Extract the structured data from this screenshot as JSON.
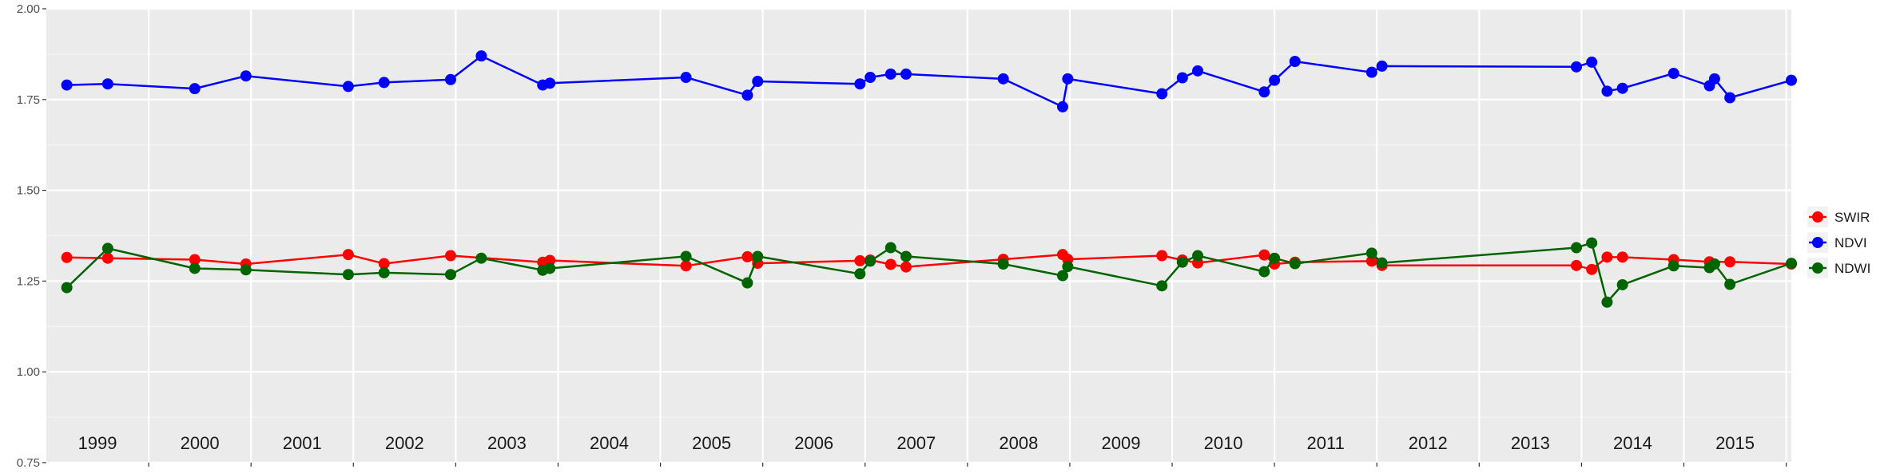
{
  "chart_data": {
    "type": "line",
    "title": "",
    "xlabel": "",
    "ylabel": "",
    "ylim": [
      0.75,
      2.0
    ],
    "y_ticks": [
      "0.75",
      "1.00",
      "1.25",
      "1.50",
      "1.75",
      "2.00"
    ],
    "y_tick_values": [
      0.75,
      1.0,
      1.25,
      1.5,
      1.75,
      2.0
    ],
    "x_range": [
      1999.0,
      2016.05
    ],
    "year_labels": [
      "1999",
      "2000",
      "2001",
      "2002",
      "2003",
      "2004",
      "2005",
      "2006",
      "2007",
      "2008",
      "2009",
      "2010",
      "2011",
      "2012",
      "2013",
      "2014",
      "2015"
    ],
    "year_label_positions": [
      1999.5,
      2000.5,
      2001.5,
      2002.5,
      2003.5,
      2004.5,
      2005.5,
      2006.5,
      2007.5,
      2008.5,
      2009.5,
      2010.5,
      2011.5,
      2012.5,
      2013.5,
      2014.5,
      2015.5
    ],
    "grid": true,
    "legend_position": "right",
    "series": [
      {
        "name": "SWIR",
        "color": "#ff0000",
        "x": [
          1999.2,
          1999.6,
          2000.45,
          2000.95,
          2001.95,
          2002.3,
          2002.95,
          2003.85,
          2003.92,
          2005.25,
          2005.85,
          2005.95,
          2006.95,
          2007.05,
          2007.25,
          2007.4,
          2008.35,
          2008.93,
          2008.98,
          2009.9,
          2010.1,
          2010.25,
          2010.9,
          2011.0,
          2011.2,
          2011.95,
          2012.05,
          2013.95,
          2014.1,
          2014.25,
          2014.4,
          2014.9,
          2015.25,
          2015.45,
          2016.05
        ],
        "y": [
          1.315,
          1.313,
          1.309,
          1.297,
          1.323,
          1.298,
          1.32,
          1.302,
          1.307,
          1.292,
          1.317,
          1.299,
          1.306,
          1.308,
          1.296,
          1.289,
          1.31,
          1.323,
          1.31,
          1.32,
          1.308,
          1.3,
          1.322,
          1.297,
          1.302,
          1.305,
          1.293,
          1.293,
          1.282,
          1.316,
          1.316,
          1.309,
          1.303,
          1.303,
          1.297
        ]
      },
      {
        "name": "NDVI",
        "color": "#0000ff",
        "x": [
          1999.2,
          1999.6,
          2000.45,
          2000.95,
          2001.95,
          2002.3,
          2002.95,
          2003.25,
          2003.85,
          2003.92,
          2005.25,
          2005.85,
          2005.95,
          2006.95,
          2007.05,
          2007.25,
          2007.4,
          2008.35,
          2008.93,
          2008.98,
          2009.9,
          2010.1,
          2010.25,
          2010.9,
          2011.0,
          2011.2,
          2011.95,
          2012.05,
          2013.95,
          2014.1,
          2014.25,
          2014.4,
          2014.9,
          2015.25,
          2015.3,
          2015.45,
          2016.05
        ],
        "y": [
          1.79,
          1.793,
          1.78,
          1.815,
          1.786,
          1.797,
          1.805,
          1.87,
          1.79,
          1.795,
          1.811,
          1.762,
          1.8,
          1.793,
          1.811,
          1.82,
          1.82,
          1.807,
          1.73,
          1.807,
          1.766,
          1.81,
          1.829,
          1.771,
          1.803,
          1.855,
          1.825,
          1.842,
          1.84,
          1.853,
          1.773,
          1.781,
          1.822,
          1.788,
          1.807,
          1.755,
          1.803
        ]
      },
      {
        "name": "NDWI",
        "color": "#006400",
        "x": [
          1999.2,
          1999.6,
          2000.45,
          2000.95,
          2001.95,
          2002.3,
          2002.95,
          2003.25,
          2003.85,
          2003.92,
          2005.25,
          2005.85,
          2005.95,
          2006.95,
          2007.05,
          2007.25,
          2007.4,
          2008.35,
          2008.93,
          2008.98,
          2009.9,
          2010.1,
          2010.25,
          2010.9,
          2011.0,
          2011.2,
          2011.95,
          2012.05,
          2013.95,
          2014.1,
          2014.25,
          2014.4,
          2014.9,
          2015.25,
          2015.3,
          2015.45,
          2016.05
        ],
        "y": [
          1.232,
          1.34,
          1.285,
          1.281,
          1.268,
          1.273,
          1.268,
          1.313,
          1.28,
          1.285,
          1.318,
          1.245,
          1.318,
          1.27,
          1.305,
          1.342,
          1.318,
          1.297,
          1.265,
          1.29,
          1.237,
          1.302,
          1.32,
          1.276,
          1.313,
          1.298,
          1.327,
          1.3,
          1.342,
          1.355,
          1.192,
          1.24,
          1.292,
          1.287,
          1.297,
          1.241,
          1.299
        ]
      }
    ]
  }
}
